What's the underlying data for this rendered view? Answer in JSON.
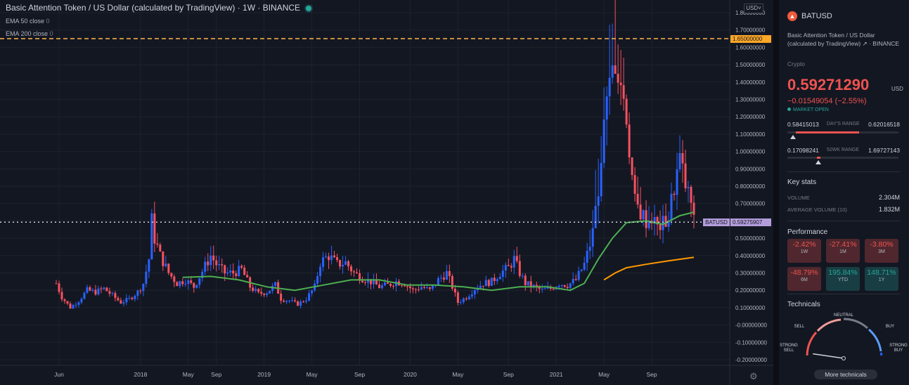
{
  "header": {
    "title": "Basic Attention Token / US Dollar (calculated by TradingView) · 1W · BINANCE",
    "indicators": [
      {
        "label": "EMA 50 close",
        "value": "0"
      },
      {
        "label": "EMA 200 close",
        "value": "0"
      }
    ],
    "currency_button": "USD"
  },
  "colors": {
    "up": "#26a69a",
    "down": "#ef5350",
    "candle_up": "#2962ff",
    "candle_down": "#f7525f",
    "ema50": "#4caf50",
    "ema200": "#ff9800",
    "hline": "#ffb74d",
    "price_label_bg": "#b39ddb"
  },
  "chart_data": {
    "type": "candlestick",
    "y_axis": {
      "min": -0.2,
      "max": 1.8,
      "step": 0.1,
      "tick_labels": [
        "-0.20000000",
        "-0.10000000",
        "-0.00000000",
        "0.10000000",
        "0.20000000",
        "0.30000000",
        "0.40000000",
        "0.50000000",
        "0.60000000",
        "0.70000000",
        "0.80000000",
        "0.90000000",
        "1.00000000",
        "1.10000000",
        "1.20000000",
        "1.30000000",
        "1.40000000",
        "1.50000000",
        "1.60000000",
        "1.70000000",
        "1.80000000"
      ]
    },
    "x_axis": {
      "tick_labels": [
        "Jun",
        "2018",
        "May",
        "Sep",
        "2019",
        "May",
        "Sep",
        "2020",
        "May",
        "Sep",
        "2021",
        "May",
        "Sep"
      ]
    },
    "horizontal_line": {
      "value": 1.65,
      "label": "1.65000000"
    },
    "last_price": {
      "symbol": "BATUSD",
      "value": 0.59275907,
      "label": "0.59275907"
    },
    "price_path_weekly_closes_approx": [
      [
        0,
        0.24
      ],
      [
        2,
        0.16
      ],
      [
        5,
        0.1
      ],
      [
        8,
        0.14
      ],
      [
        11,
        0.2
      ],
      [
        14,
        0.19
      ],
      [
        17,
        0.21
      ],
      [
        20,
        0.17
      ],
      [
        23,
        0.13
      ],
      [
        26,
        0.15
      ],
      [
        29,
        0.19
      ],
      [
        31,
        0.24
      ],
      [
        33,
        0.38
      ],
      [
        34,
        0.6
      ],
      [
        35,
        0.5
      ],
      [
        37,
        0.4
      ],
      [
        40,
        0.3
      ],
      [
        43,
        0.24
      ],
      [
        46,
        0.26
      ],
      [
        49,
        0.22
      ],
      [
        52,
        0.31
      ],
      [
        55,
        0.4
      ],
      [
        57,
        0.35
      ],
      [
        60,
        0.3
      ],
      [
        63,
        0.3
      ],
      [
        66,
        0.32
      ],
      [
        69,
        0.22
      ],
      [
        72,
        0.18
      ],
      [
        75,
        0.19
      ],
      [
        78,
        0.23
      ],
      [
        80,
        0.15
      ],
      [
        83,
        0.14
      ],
      [
        86,
        0.12
      ],
      [
        89,
        0.15
      ],
      [
        92,
        0.22
      ],
      [
        94,
        0.36
      ],
      [
        97,
        0.4
      ],
      [
        100,
        0.35
      ],
      [
        103,
        0.36
      ],
      [
        106,
        0.3
      ],
      [
        109,
        0.27
      ],
      [
        112,
        0.25
      ],
      [
        115,
        0.22
      ],
      [
        118,
        0.23
      ],
      [
        121,
        0.25
      ],
      [
        124,
        0.24
      ],
      [
        127,
        0.2
      ],
      [
        130,
        0.22
      ],
      [
        133,
        0.2
      ],
      [
        136,
        0.26
      ],
      [
        139,
        0.3
      ],
      [
        141,
        0.22
      ],
      [
        143,
        0.13
      ],
      [
        146,
        0.16
      ],
      [
        149,
        0.21
      ],
      [
        152,
        0.24
      ],
      [
        155,
        0.25
      ],
      [
        158,
        0.3
      ],
      [
        161,
        0.33
      ],
      [
        163,
        0.38
      ],
      [
        165,
        0.3
      ],
      [
        167,
        0.24
      ],
      [
        170,
        0.22
      ],
      [
        173,
        0.2
      ],
      [
        176,
        0.21
      ],
      [
        179,
        0.24
      ],
      [
        182,
        0.23
      ],
      [
        185,
        0.26
      ],
      [
        188,
        0.35
      ],
      [
        191,
        0.52
      ],
      [
        193,
        0.8
      ],
      [
        195,
        1.15
      ],
      [
        197,
        1.35
      ],
      [
        199,
        1.55
      ],
      [
        201,
        1.4
      ],
      [
        203,
        1.2
      ],
      [
        205,
        0.85
      ],
      [
        206,
        0.7
      ],
      [
        208,
        0.65
      ],
      [
        210,
        0.6
      ],
      [
        212,
        0.62
      ],
      [
        214,
        0.56
      ],
      [
        216,
        0.58
      ],
      [
        218,
        0.62
      ],
      [
        220,
        0.8
      ],
      [
        222,
        0.95
      ],
      [
        224,
        0.8
      ],
      [
        226,
        0.7
      ],
      [
        227,
        0.59
      ]
    ],
    "ema50_path_approx": [
      [
        45,
        0.275
      ],
      [
        55,
        0.28
      ],
      [
        65,
        0.26
      ],
      [
        75,
        0.22
      ],
      [
        85,
        0.2
      ],
      [
        95,
        0.23
      ],
      [
        105,
        0.26
      ],
      [
        115,
        0.26
      ],
      [
        125,
        0.23
      ],
      [
        135,
        0.23
      ],
      [
        145,
        0.22
      ],
      [
        155,
        0.2
      ],
      [
        165,
        0.22
      ],
      [
        175,
        0.22
      ],
      [
        183,
        0.2
      ],
      [
        188,
        0.24
      ],
      [
        193,
        0.38
      ],
      [
        198,
        0.5
      ],
      [
        203,
        0.59
      ],
      [
        210,
        0.6
      ],
      [
        216,
        0.58
      ],
      [
        222,
        0.63
      ],
      [
        227,
        0.65
      ]
    ],
    "ema200_path_approx": [
      [
        195,
        0.26
      ],
      [
        199,
        0.3
      ],
      [
        203,
        0.33
      ],
      [
        210,
        0.35
      ],
      [
        218,
        0.37
      ],
      [
        227,
        0.39
      ]
    ]
  },
  "symbol_panel": {
    "symbol": "BATUSD",
    "description": "Basic Attention Token / US Dollar (calculated by TradingView) ↗ · BINANCE",
    "category": "Crypto",
    "price": "0.59271290",
    "price_currency": "USD",
    "change": "−0.01549054 (−2.55%)",
    "market_status": "MARKET OPEN",
    "days_range": {
      "low": "0.58415013",
      "label": "DAY'S RANGE",
      "high": "0.62016518",
      "marker_fraction": 0.05
    },
    "wk52_range": {
      "low": "0.17098241",
      "label": "52WK RANGE",
      "high": "1.69727143",
      "marker_fraction": 0.28
    },
    "key_stats_title": "Key stats",
    "volume_label": "VOLUME",
    "volume_value": "2.304M",
    "avg_volume_label": "AVERAGE VOLUME (10)",
    "avg_volume_value": "1.832M",
    "performance_title": "Performance",
    "performance": [
      {
        "value": "-2.42%",
        "label": "1W",
        "sign": "neg"
      },
      {
        "value": "-27.41%",
        "label": "1M",
        "sign": "neg"
      },
      {
        "value": "-3.80%",
        "label": "3M",
        "sign": "neg"
      },
      {
        "value": "-48.79%",
        "label": "6M",
        "sign": "neg"
      },
      {
        "value": "195.84%",
        "label": "YTD",
        "sign": "pos"
      },
      {
        "value": "148.71%",
        "label": "1Y",
        "sign": "pos"
      }
    ],
    "technicals_title": "Technicals",
    "gauge_labels": {
      "strong_sell": "STRONG SELL",
      "sell": "SELL",
      "neutral": "NEUTRAL",
      "buy": "BUY",
      "strong_buy": "STRONG BUY"
    },
    "gauge_reading_fraction": 0.1,
    "more_button": "More technicals"
  }
}
